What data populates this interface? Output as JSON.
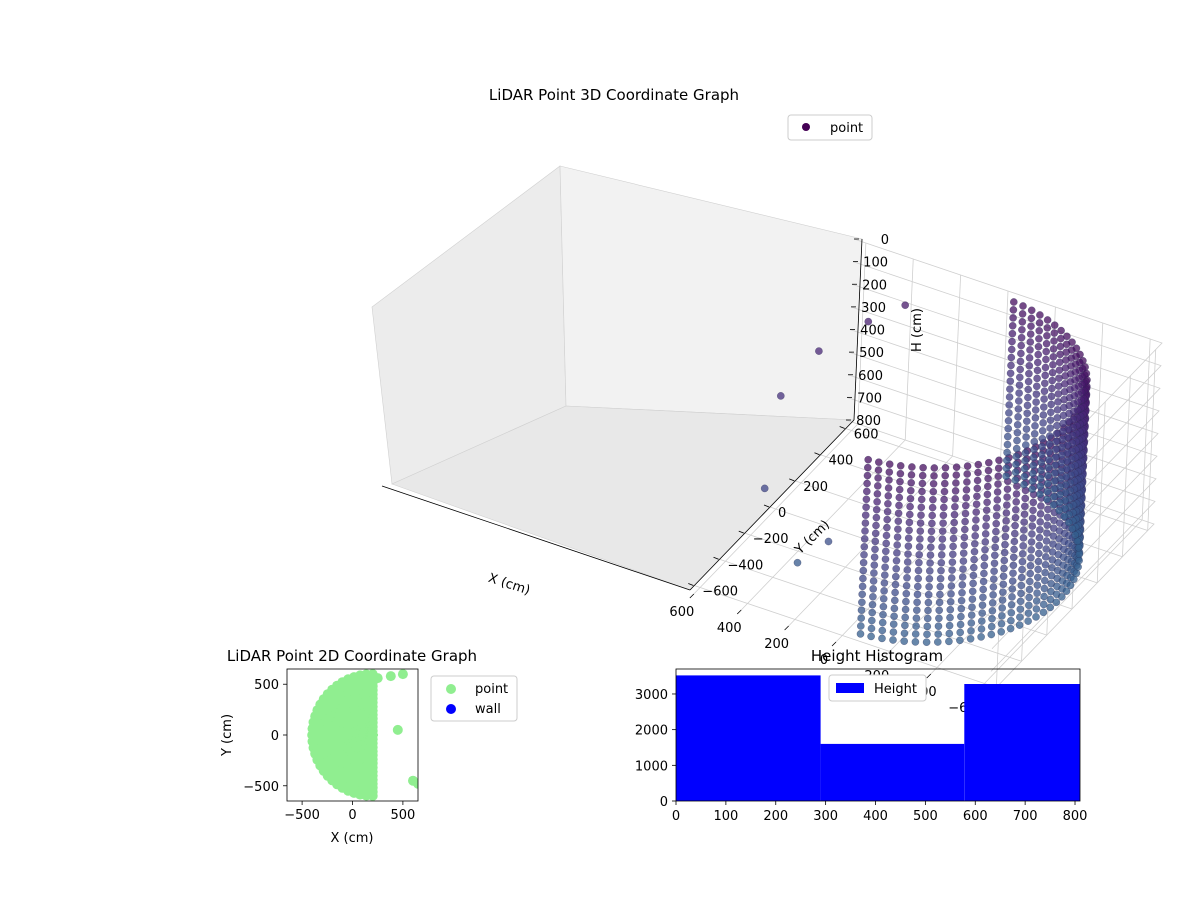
{
  "chart_data": [
    {
      "type": "scatter",
      "projection": "3d",
      "title": "LiDAR Point 3D Coordinate Graph",
      "xlabel": "X (cm)",
      "ylabel": "Y (cm)",
      "zlabel": "H (cm)",
      "xticks": [
        "−600",
        "−400",
        "−200",
        "0",
        "200",
        "400",
        "600"
      ],
      "yticks": [
        "−600",
        "−400",
        "−200",
        "0",
        "200",
        "400",
        "600"
      ],
      "zticks": [
        "0",
        "100",
        "200",
        "300",
        "400",
        "500",
        "600",
        "700",
        "800"
      ],
      "xlim": [
        -650,
        650
      ],
      "ylim": [
        -650,
        650
      ],
      "zlim": [
        0,
        800
      ],
      "z_inverted": true,
      "grid": true,
      "legend": "top-right",
      "series": [
        {
          "name": "point",
          "color_map": "viridis",
          "description_points": "cylindrical wall of radius ~600 cm spanning x<0, height 0-800",
          "sample_points": [
            {
              "x": 350,
              "y": 500,
              "h": 100
            },
            {
              "x": 450,
              "y": 400,
              "h": 150
            },
            {
              "x": 550,
              "y": 200,
              "h": 200
            },
            {
              "x": 600,
              "y": 0,
              "h": 300
            },
            {
              "x": 500,
              "y": -300,
              "h": 500
            },
            {
              "x": 200,
              "y": -350,
              "h": 600
            },
            {
              "x": 300,
              "y": -400,
              "h": 700
            }
          ]
        }
      ],
      "legend_colors": {
        "point": "#440154"
      }
    },
    {
      "type": "scatter",
      "title": "LiDAR Point 2D Coordinate Graph",
      "xlabel": "X (cm)",
      "ylabel": "Y (cm)",
      "xticks": [
        "−500",
        "0",
        "500"
      ],
      "yticks": [
        "−500",
        "0",
        "500"
      ],
      "xlim": [
        -650,
        650
      ],
      "ylim": [
        -650,
        650
      ],
      "legend": "outside-right",
      "series": [
        {
          "name": "point",
          "color": "#90ee90"
        },
        {
          "name": "wall",
          "color": "#0000ff"
        }
      ]
    },
    {
      "type": "bar",
      "histogram": true,
      "title": "Height Histogram",
      "xticks": [
        "0",
        "100",
        "200",
        "300",
        "400",
        "500",
        "600",
        "700",
        "800"
      ],
      "yticks": [
        "0",
        "1000",
        "2000",
        "3000"
      ],
      "xlim": [
        0,
        810
      ],
      "ylim": [
        0,
        3700
      ],
      "bins": [
        {
          "start": 0,
          "end": 290,
          "value": 3520
        },
        {
          "start": 290,
          "end": 578,
          "value": 1600
        },
        {
          "start": 578,
          "end": 810,
          "value": 3280
        }
      ],
      "legend": "top-center",
      "series": [
        {
          "name": "Height",
          "color": "#0000ff"
        }
      ]
    }
  ]
}
